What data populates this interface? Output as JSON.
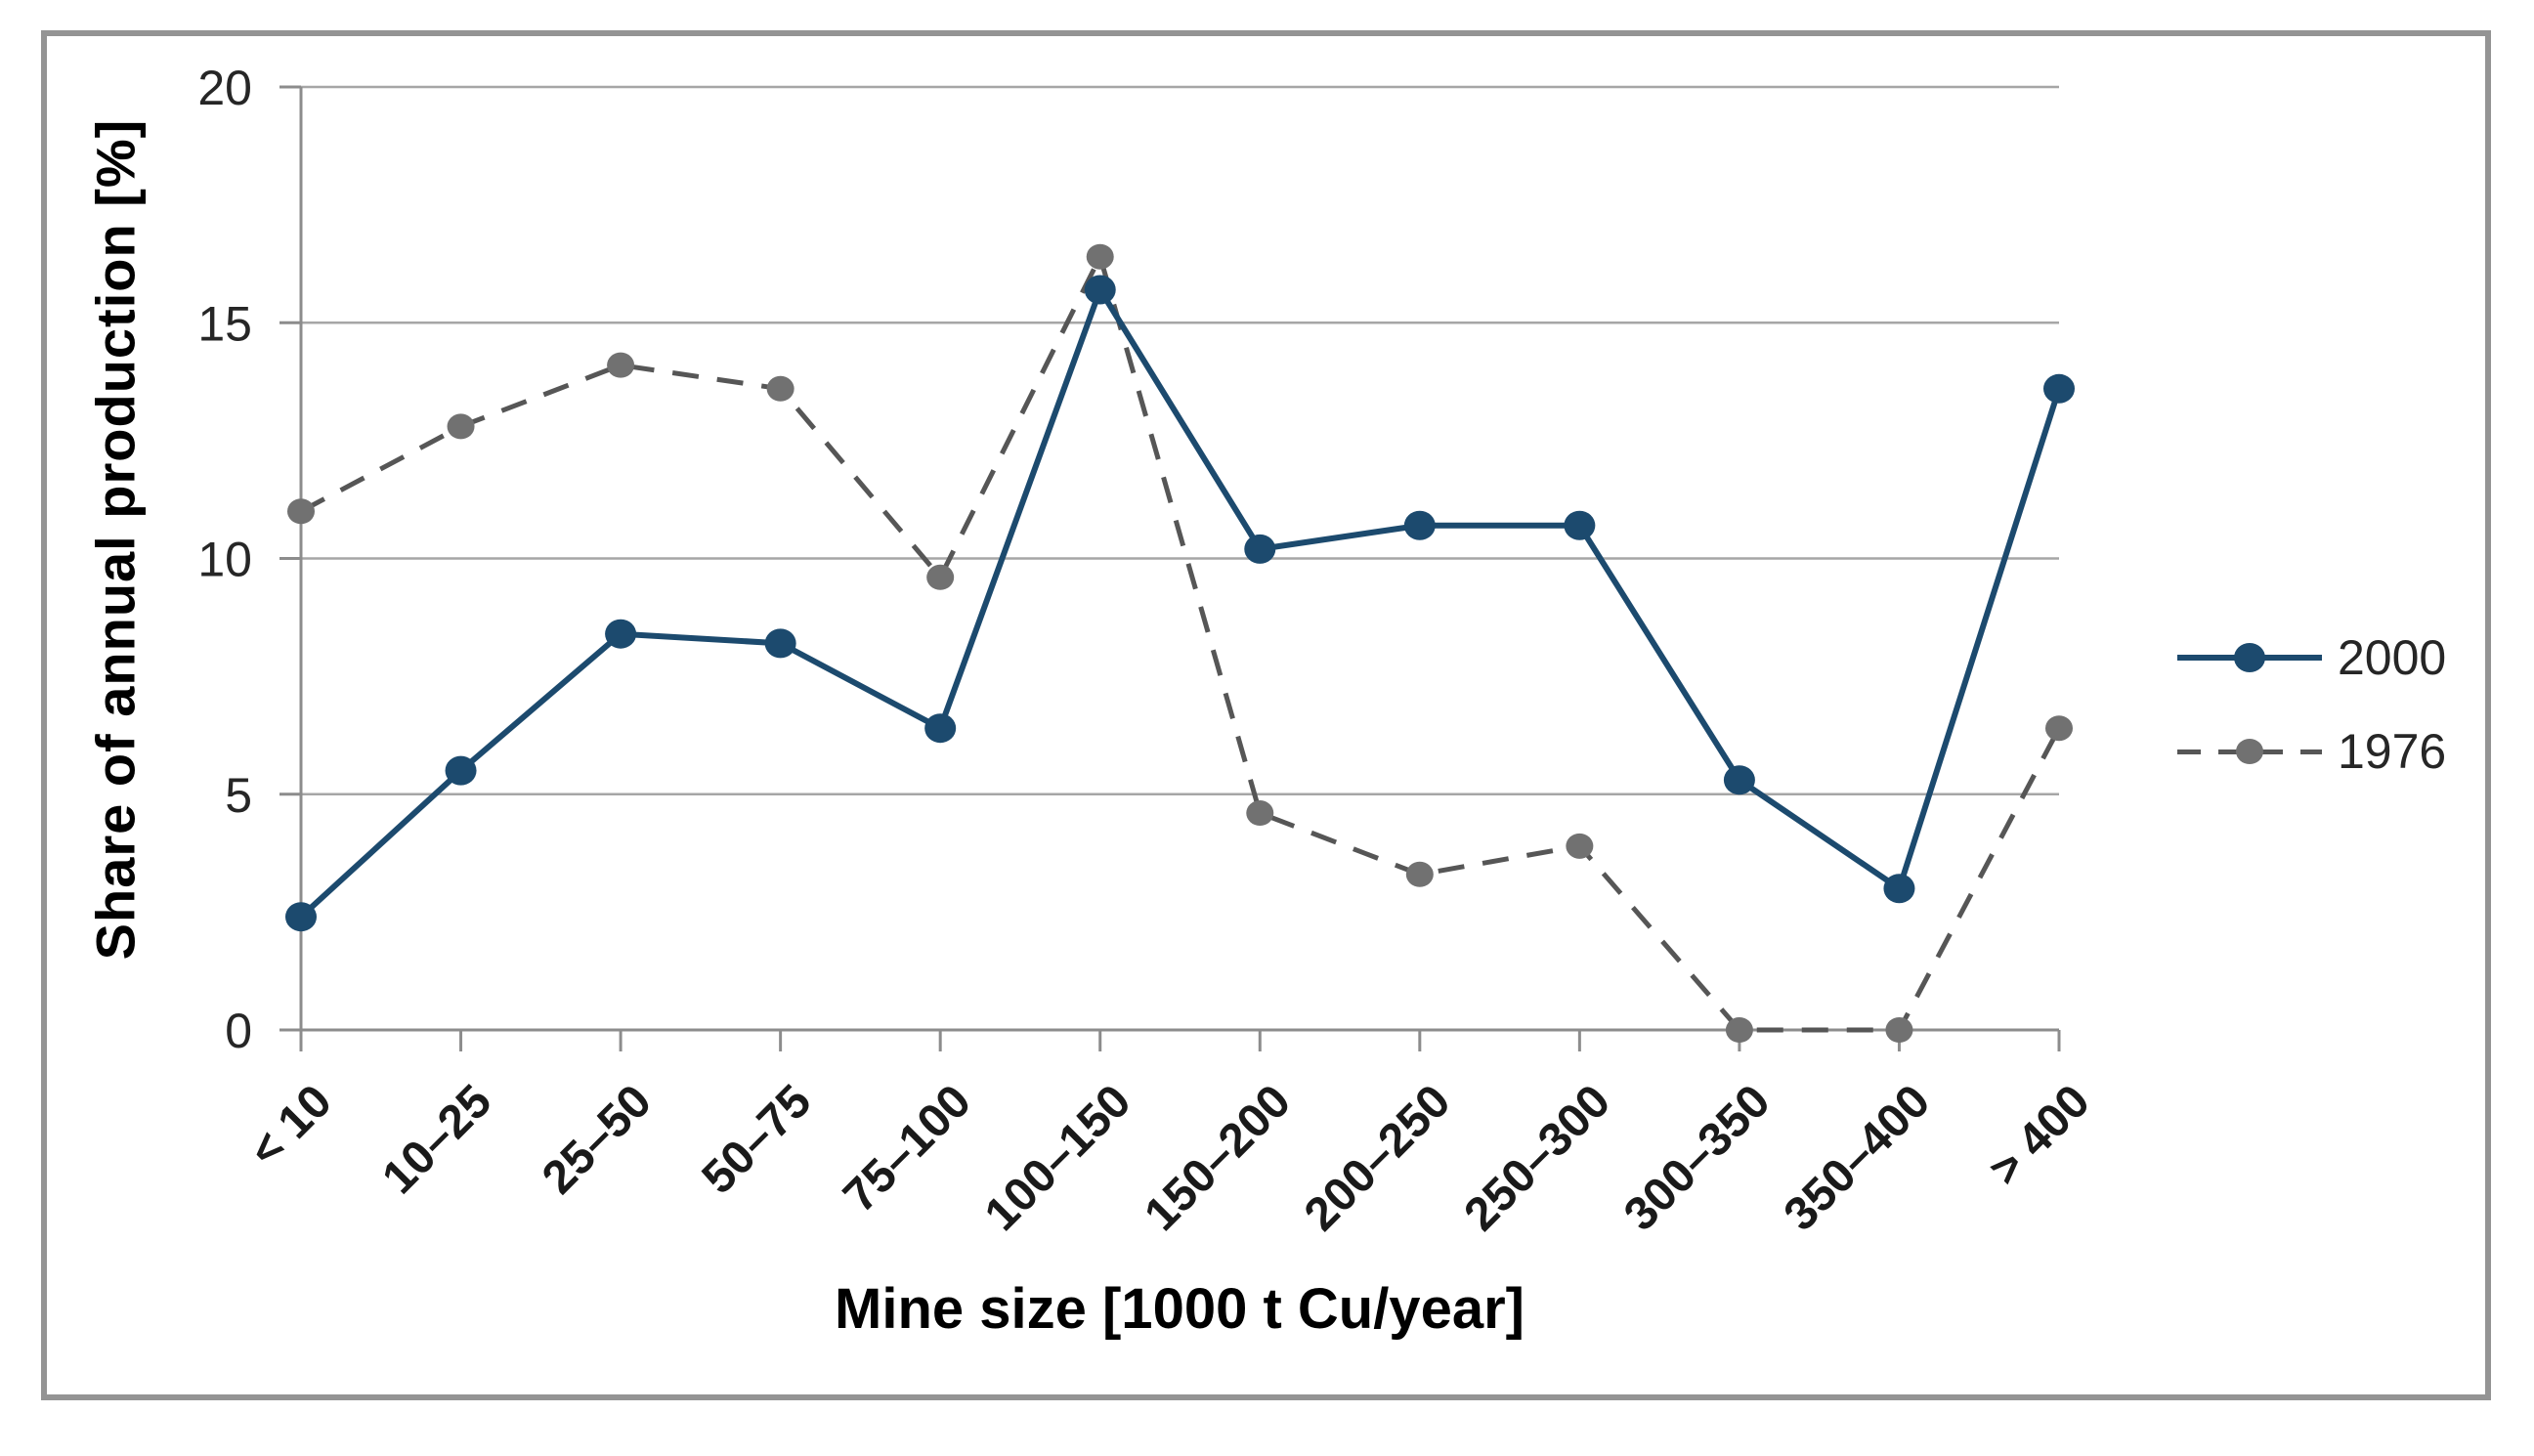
{
  "figure": {
    "frame_color": "#949494",
    "background_color": "#ffffff"
  },
  "chart_data": {
    "type": "line",
    "title": "",
    "xlabel": "Mine size [1000 t Cu/year]",
    "ylabel": "Share of annual production [%]",
    "categories": [
      "< 10",
      "10–25",
      "25–50",
      "50–75",
      "75–100",
      "100–150",
      "150–200",
      "200–250",
      "250–300",
      "300–350",
      "350–400",
      "> 400"
    ],
    "series": [
      {
        "name": "2000",
        "style": "solid",
        "marker": "circle",
        "color": "#1c4a6e",
        "marker_color": "#1c4a6e",
        "values": [
          2.4,
          5.5,
          8.4,
          8.2,
          6.4,
          15.7,
          10.2,
          10.7,
          10.7,
          5.3,
          3.0,
          13.6
        ]
      },
      {
        "name": "1976",
        "style": "dashed",
        "marker": "circle",
        "color": "#565656",
        "marker_color": "#717171",
        "values": [
          11.0,
          12.8,
          14.1,
          13.6,
          9.6,
          16.4,
          4.6,
          3.3,
          3.9,
          0.0,
          0.0,
          6.4
        ]
      }
    ],
    "ylim": [
      0,
      20
    ],
    "yticks": [
      0,
      5,
      10,
      15,
      20
    ],
    "grid": "horizontal",
    "grid_color": "#a6a6a6",
    "axis_color": "#8c8c8c",
    "tick_label_color": "#262626",
    "legend_position": "right-middle"
  }
}
